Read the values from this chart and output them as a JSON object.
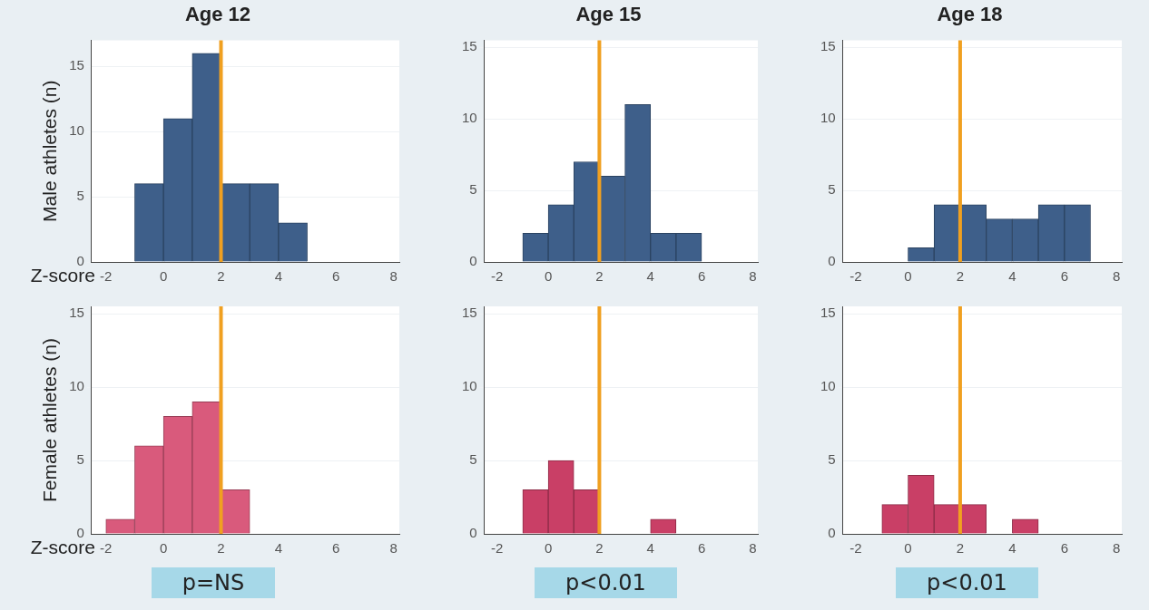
{
  "chart_data": [
    {
      "type": "histogram",
      "title": "Age 12",
      "xlabel": "Z-score",
      "ylabel": "Male athletes (n)",
      "bins": [
        -1,
        0,
        1,
        2,
        3,
        4,
        5
      ],
      "values": [
        6,
        11,
        16,
        6,
        6,
        3
      ],
      "color": "#3e5f8a",
      "xlim": [
        -2.5,
        8.2
      ],
      "xticks": [
        -2,
        0,
        2,
        4,
        6,
        8
      ],
      "ylim": [
        0,
        17
      ],
      "yticks": [
        0,
        5,
        10,
        15
      ],
      "grid": "y",
      "ref_lines": [
        {
          "axis": "x",
          "value": 2,
          "color": "#f0a020"
        }
      ]
    },
    {
      "type": "histogram",
      "title": "Age 15",
      "bins": [
        -1,
        0,
        1,
        2,
        3,
        4,
        5,
        6
      ],
      "values": [
        2,
        4,
        7,
        6,
        11,
        2,
        2
      ],
      "color": "#3e5f8a",
      "xlim": [
        -2.5,
        8.2
      ],
      "xticks": [
        -2,
        0,
        2,
        4,
        6,
        8
      ],
      "ylim": [
        0,
        15.5
      ],
      "yticks": [
        0,
        5,
        10,
        15
      ],
      "grid": "y",
      "ref_lines": [
        {
          "axis": "x",
          "value": 2,
          "color": "#f0a020"
        }
      ]
    },
    {
      "type": "histogram",
      "title": "Age 18",
      "bins": [
        0,
        1,
        2,
        3,
        4,
        5,
        6,
        7
      ],
      "values": [
        1,
        4,
        4,
        3,
        3,
        4,
        4
      ],
      "color": "#3e5f8a",
      "xlim": [
        -2.5,
        8.2
      ],
      "xticks": [
        -2,
        0,
        2,
        4,
        6,
        8
      ],
      "ylim": [
        0,
        15.5
      ],
      "yticks": [
        0,
        5,
        10,
        15
      ],
      "grid": "y",
      "ref_lines": [
        {
          "axis": "x",
          "value": 2,
          "color": "#f0a020"
        }
      ]
    },
    {
      "type": "histogram",
      "xlabel": "Z-score",
      "ylabel": "Female athletes (n)",
      "bins": [
        -2,
        -1,
        0,
        1,
        2,
        3
      ],
      "values": [
        1,
        6,
        8,
        9,
        3
      ],
      "color": "#d95a7c",
      "xlim": [
        -2.5,
        8.2
      ],
      "xticks": [
        -2,
        0,
        2,
        4,
        6,
        8
      ],
      "ylim": [
        0,
        15.5
      ],
      "yticks": [
        0,
        5,
        10,
        15
      ],
      "grid": "y",
      "ref_lines": [
        {
          "axis": "x",
          "value": 2,
          "color": "#f0a020"
        }
      ],
      "annotations": [
        "p=NS"
      ]
    },
    {
      "type": "histogram",
      "bins": [
        -1,
        0,
        1,
        2,
        3,
        4,
        5
      ],
      "values": [
        3,
        5,
        3,
        0,
        0,
        1
      ],
      "color": "#c93f66",
      "xlim": [
        -2.5,
        8.2
      ],
      "xticks": [
        -2,
        0,
        2,
        4,
        6,
        8
      ],
      "ylim": [
        0,
        15.5
      ],
      "yticks": [
        0,
        5,
        10,
        15
      ],
      "grid": "y",
      "ref_lines": [
        {
          "axis": "x",
          "value": 2,
          "color": "#f0a020"
        }
      ],
      "annotations": [
        "p<0.01"
      ]
    },
    {
      "type": "histogram",
      "bins": [
        -1,
        0,
        1,
        2,
        3,
        4,
        5
      ],
      "values": [
        2,
        4,
        2,
        2,
        0,
        1
      ],
      "color": "#c93f66",
      "xlim": [
        -2.5,
        8.2
      ],
      "xticks": [
        -2,
        0,
        2,
        4,
        6,
        8
      ],
      "ylim": [
        0,
        15.5
      ],
      "yticks": [
        0,
        5,
        10,
        15
      ],
      "grid": "y",
      "ref_lines": [
        {
          "axis": "x",
          "value": 2,
          "color": "#f0a020"
        }
      ],
      "annotations": [
        "p<0.01"
      ]
    }
  ]
}
